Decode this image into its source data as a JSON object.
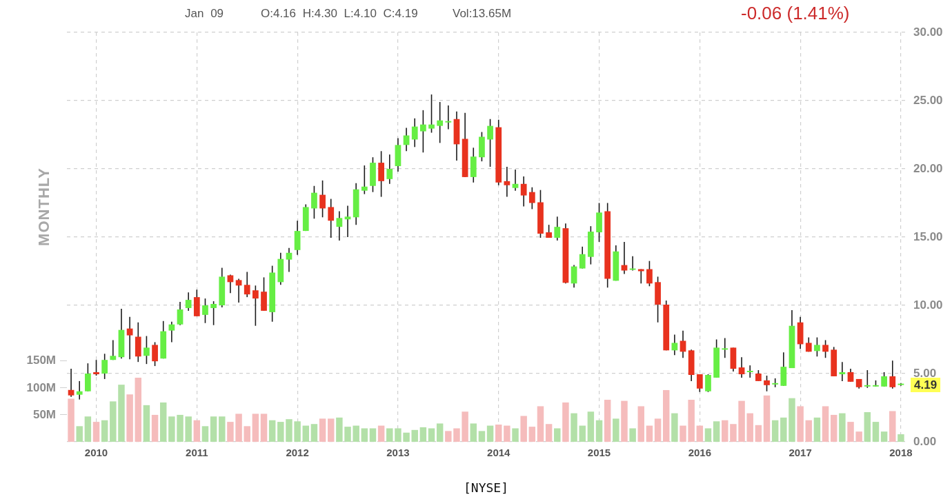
{
  "chart_data": {
    "type": "candlestick",
    "xlabel": "[NYSE]",
    "annotations": [
      "Jan 09",
      "O:4.16 H:4.30 L:4.10 C:4.19",
      "Vol:13.65M",
      "-0.06 (1.41%)",
      "4.19",
      "MONTHLY"
    ],
    "categories": [
      null,
      null,
      null,
      "2010",
      null,
      null,
      null,
      null,
      null,
      null,
      null,
      null,
      null,
      null,
      null,
      "2011",
      null,
      null,
      null,
      null,
      null,
      null,
      null,
      null,
      null,
      null,
      null,
      "2012",
      null,
      null,
      null,
      null,
      null,
      null,
      null,
      null,
      null,
      null,
      null,
      "2013",
      null,
      null,
      null,
      null,
      null,
      null,
      null,
      null,
      null,
      null,
      null,
      "2014",
      null,
      null,
      null,
      null,
      null,
      null,
      null,
      null,
      null,
      null,
      null,
      "2015",
      null,
      null,
      null,
      null,
      null,
      null,
      null,
      null,
      null,
      null,
      null,
      "2016",
      null,
      null,
      null,
      null,
      null,
      null,
      null,
      null,
      null,
      null,
      null,
      "2017",
      null,
      null,
      null,
      null,
      null,
      null,
      null,
      null,
      null,
      null,
      null,
      "2018"
    ],
    "ohlc": [
      [
        3.8,
        5.35,
        3.3,
        3.4
      ],
      [
        3.45,
        4.45,
        3.1,
        3.7
      ],
      [
        3.7,
        5.75,
        3.7,
        5.0
      ],
      [
        5.1,
        6.0,
        4.85,
        4.95
      ],
      [
        5.0,
        6.45,
        4.6,
        6.0
      ],
      [
        6.0,
        7.45,
        6.0,
        6.3
      ],
      [
        6.2,
        9.75,
        6.1,
        8.2
      ],
      [
        8.3,
        9.15,
        6.05,
        7.8
      ],
      [
        7.7,
        8.75,
        5.85,
        6.25
      ],
      [
        6.3,
        7.75,
        5.7,
        6.9
      ],
      [
        7.1,
        7.3,
        5.55,
        5.9
      ],
      [
        6.1,
        8.85,
        6.1,
        8.1
      ],
      [
        8.15,
        8.8,
        7.3,
        8.6
      ],
      [
        8.6,
        10.25,
        8.55,
        9.7
      ],
      [
        9.8,
        10.95,
        9.6,
        10.4
      ],
      [
        10.6,
        11.15,
        9.2,
        9.2
      ],
      [
        9.3,
        10.5,
        8.7,
        10.0
      ],
      [
        9.8,
        10.3,
        8.55,
        10.1
      ],
      [
        10.0,
        12.75,
        9.85,
        12.1
      ],
      [
        12.2,
        12.25,
        10.9,
        11.7
      ],
      [
        11.85,
        11.95,
        10.2,
        11.45
      ],
      [
        11.5,
        12.45,
        10.6,
        10.8
      ],
      [
        11.1,
        11.45,
        8.5,
        10.5
      ],
      [
        11.0,
        12.05,
        9.6,
        9.6
      ],
      [
        9.5,
        12.9,
        8.8,
        12.4
      ],
      [
        11.7,
        13.85,
        11.5,
        13.4
      ],
      [
        13.35,
        14.2,
        12.45,
        13.85
      ],
      [
        14.05,
        16.2,
        13.7,
        15.45
      ],
      [
        15.45,
        17.4,
        15.45,
        17.2
      ],
      [
        17.1,
        18.75,
        16.35,
        18.25
      ],
      [
        18.1,
        19.15,
        16.45,
        17.1
      ],
      [
        17.2,
        17.8,
        14.95,
        16.2
      ],
      [
        15.75,
        16.9,
        14.75,
        16.4
      ],
      [
        16.3,
        17.3,
        15.0,
        16.5
      ],
      [
        16.45,
        18.95,
        15.9,
        18.5
      ],
      [
        18.4,
        20.25,
        18.15,
        18.7
      ],
      [
        18.75,
        20.85,
        18.3,
        20.45
      ],
      [
        20.45,
        21.3,
        17.95,
        19.1
      ],
      [
        19.25,
        21.05,
        18.9,
        20.0
      ],
      [
        20.2,
        22.25,
        19.8,
        21.75
      ],
      [
        21.75,
        23.0,
        21.3,
        22.45
      ],
      [
        22.15,
        23.7,
        21.6,
        23.1
      ],
      [
        22.75,
        24.3,
        21.2,
        23.25
      ],
      [
        22.95,
        25.45,
        22.65,
        23.25
      ],
      [
        23.15,
        24.9,
        21.9,
        23.55
      ],
      [
        23.4,
        24.65,
        22.9,
        23.4
      ],
      [
        23.65,
        24.2,
        20.6,
        21.8
      ],
      [
        22.2,
        24.1,
        19.4,
        19.4
      ],
      [
        19.4,
        21.55,
        19.0,
        20.9
      ],
      [
        20.85,
        22.7,
        20.55,
        22.35
      ],
      [
        22.15,
        23.65,
        20.15,
        23.15
      ],
      [
        23.05,
        23.6,
        18.8,
        19.0
      ],
      [
        19.1,
        20.15,
        17.95,
        18.8
      ],
      [
        18.6,
        19.95,
        18.4,
        18.9
      ],
      [
        18.9,
        19.45,
        17.25,
        18.05
      ],
      [
        18.3,
        18.65,
        17.05,
        17.5
      ],
      [
        17.55,
        18.45,
        14.95,
        15.25
      ],
      [
        15.35,
        15.9,
        14.95,
        14.95
      ],
      [
        14.95,
        16.5,
        14.75,
        15.75
      ],
      [
        15.65,
        16.0,
        11.6,
        11.65
      ],
      [
        11.6,
        12.95,
        11.3,
        12.85
      ],
      [
        12.7,
        14.3,
        12.7,
        13.75
      ],
      [
        13.55,
        15.8,
        13.0,
        15.4
      ],
      [
        15.35,
        17.5,
        14.65,
        16.8
      ],
      [
        16.9,
        17.5,
        11.3,
        11.95
      ],
      [
        11.8,
        14.4,
        11.8,
        13.95
      ],
      [
        12.95,
        14.65,
        12.3,
        12.55
      ],
      [
        12.6,
        13.6,
        12.55,
        12.6
      ],
      [
        12.65,
        12.65,
        11.6,
        12.5
      ],
      [
        12.65,
        13.25,
        11.4,
        11.6
      ],
      [
        11.7,
        12.1,
        8.75,
        10.05
      ],
      [
        10.05,
        10.35,
        6.7,
        6.7
      ],
      [
        6.7,
        7.85,
        6.35,
        7.25
      ],
      [
        7.4,
        8.15,
        6.15,
        6.6
      ],
      [
        6.7,
        6.75,
        4.45,
        4.9
      ],
      [
        4.95,
        4.95,
        3.65,
        3.9
      ],
      [
        3.7,
        4.95,
        3.65,
        4.9
      ],
      [
        4.7,
        7.5,
        4.7,
        6.9
      ],
      [
        6.75,
        7.6,
        6.15,
        6.75
      ],
      [
        6.9,
        6.9,
        5.15,
        5.35
      ],
      [
        5.45,
        6.2,
        4.7,
        4.95
      ],
      [
        5.1,
        5.6,
        4.7,
        5.1
      ],
      [
        5.0,
        5.25,
        4.45,
        4.45
      ],
      [
        4.5,
        4.85,
        3.7,
        4.15
      ],
      [
        4.2,
        4.65,
        4.0,
        4.2
      ],
      [
        4.1,
        6.55,
        4.1,
        5.5
      ],
      [
        5.4,
        9.65,
        5.4,
        8.5
      ],
      [
        8.75,
        9.15,
        6.8,
        7.15
      ],
      [
        7.25,
        7.65,
        6.6,
        6.6
      ],
      [
        6.65,
        7.65,
        6.25,
        7.1
      ],
      [
        7.1,
        7.45,
        6.15,
        6.6
      ],
      [
        6.75,
        6.95,
        4.8,
        4.8
      ],
      [
        4.95,
        5.85,
        4.45,
        5.1
      ],
      [
        5.1,
        5.35,
        4.4,
        4.4
      ],
      [
        4.6,
        4.6,
        3.9,
        4.0
      ],
      [
        4.05,
        5.25,
        3.95,
        4.05
      ],
      [
        4.05,
        4.5,
        4.05,
        4.05
      ],
      [
        4.05,
        5.1,
        4.05,
        4.8
      ],
      [
        4.8,
        5.95,
        3.9,
        4.0
      ],
      [
        4.16,
        4.3,
        4.1,
        4.19
      ]
    ],
    "colors": [
      "#e8321e",
      "#66ee44",
      "#66ee44",
      "#e8321e",
      "#66ee44",
      "#66ee44",
      "#66ee44",
      "#e8321e",
      "#e8321e",
      "#66ee44",
      "#e8321e",
      "#66ee44",
      "#66ee44",
      "#66ee44",
      "#66ee44",
      "#e8321e",
      "#66ee44",
      "#66ee44",
      "#66ee44",
      "#e8321e",
      "#e8321e",
      "#e8321e",
      "#e8321e",
      "#e8321e",
      "#66ee44",
      "#66ee44",
      "#66ee44",
      "#66ee44",
      "#66ee44",
      "#66ee44",
      "#e8321e",
      "#e8321e",
      "#66ee44",
      "#66ee44",
      "#66ee44",
      "#66ee44",
      "#66ee44",
      "#e8321e",
      "#66ee44",
      "#66ee44",
      "#66ee44",
      "#66ee44",
      "#66ee44",
      "#66ee44",
      "#66ee44",
      "#66ee44",
      "#e8321e",
      "#e8321e",
      "#66ee44",
      "#66ee44",
      "#66ee44",
      "#e8321e",
      "#e8321e",
      "#66ee44",
      "#e8321e",
      "#e8321e",
      "#e8321e",
      "#e8321e",
      "#66ee44",
      "#e8321e",
      "#66ee44",
      "#66ee44",
      "#66ee44",
      "#66ee44",
      "#e8321e",
      "#66ee44",
      "#e8321e",
      "#66ee44",
      "#e8321e",
      "#e8321e",
      "#e8321e",
      "#e8321e",
      "#66ee44",
      "#e8321e",
      "#e8321e",
      "#e8321e",
      "#66ee44",
      "#66ee44",
      "#66ee44",
      "#e8321e",
      "#e8321e",
      "#66ee44",
      "#e8321e",
      "#e8321e",
      "#66ee44",
      "#66ee44",
      "#66ee44",
      "#e8321e",
      "#e8321e",
      "#66ee44",
      "#e8321e",
      "#e8321e",
      "#66ee44",
      "#e8321e",
      "#e8321e",
      "#66ee44",
      "#66ee44",
      "#66ee44",
      "#e8321e",
      "#66ee44"
    ],
    "series": [
      {
        "type": "bar",
        "axis": "y2",
        "values": [
          80,
          29,
          47,
          37,
          40,
          75,
          106,
          88,
          119,
          68,
          50,
          73,
          47,
          50,
          47,
          40,
          29,
          47,
          47,
          37,
          52,
          29,
          52,
          52,
          40,
          37,
          42,
          38,
          30,
          33,
          43,
          43,
          45,
          28,
          30,
          25,
          25,
          30,
          25,
          25,
          17,
          22,
          27,
          25,
          34,
          20,
          25,
          56,
          34,
          20,
          30,
          32,
          30,
          25,
          48,
          28,
          66,
          33,
          25,
          73,
          53,
          30,
          56,
          40,
          78,
          43,
          76,
          25,
          66,
          30,
          43,
          96,
          53,
          30,
          78,
          30,
          25,
          38,
          40,
          33,
          76,
          53,
          31,
          86,
          40,
          45,
          81,
          66,
          40,
          45,
          66,
          50,
          53,
          37,
          19,
          55,
          37,
          19,
          57,
          14
        ],
        "colors": [
          "#f5bcbc",
          "#b3e0a8",
          "#b3e0a8",
          "#f5bcbc",
          "#b3e0a8",
          "#b3e0a8",
          "#b3e0a8",
          "#f5bcbc",
          "#f5bcbc",
          "#b3e0a8",
          "#f5bcbc",
          "#b3e0a8",
          "#b3e0a8",
          "#b3e0a8",
          "#b3e0a8",
          "#f5bcbc",
          "#b3e0a8",
          "#b3e0a8",
          "#b3e0a8",
          "#f5bcbc",
          "#f5bcbc",
          "#f5bcbc",
          "#f5bcbc",
          "#f5bcbc",
          "#b3e0a8",
          "#b3e0a8",
          "#b3e0a8",
          "#b3e0a8",
          "#b3e0a8",
          "#b3e0a8",
          "#f5bcbc",
          "#f5bcbc",
          "#b3e0a8",
          "#b3e0a8",
          "#b3e0a8",
          "#b3e0a8",
          "#b3e0a8",
          "#f5bcbc",
          "#b3e0a8",
          "#b3e0a8",
          "#b3e0a8",
          "#b3e0a8",
          "#b3e0a8",
          "#b3e0a8",
          "#b3e0a8",
          "#f5bcbc",
          "#f5bcbc",
          "#f5bcbc",
          "#b3e0a8",
          "#b3e0a8",
          "#b3e0a8",
          "#f5bcbc",
          "#f5bcbc",
          "#b3e0a8",
          "#f5bcbc",
          "#f5bcbc",
          "#f5bcbc",
          "#f5bcbc",
          "#b3e0a8",
          "#f5bcbc",
          "#b3e0a8",
          "#b3e0a8",
          "#b3e0a8",
          "#b3e0a8",
          "#f5bcbc",
          "#b3e0a8",
          "#f5bcbc",
          "#b3e0a8",
          "#f5bcbc",
          "#f5bcbc",
          "#f5bcbc",
          "#f5bcbc",
          "#b3e0a8",
          "#f5bcbc",
          "#f5bcbc",
          "#f5bcbc",
          "#b3e0a8",
          "#b3e0a8",
          "#f5bcbc",
          "#f5bcbc",
          "#f5bcbc",
          "#f5bcbc",
          "#f5bcbc",
          "#f5bcbc",
          "#b3e0a8",
          "#b3e0a8",
          "#b3e0a8",
          "#f5bcbc",
          "#f5bcbc",
          "#b3e0a8",
          "#f5bcbc",
          "#f5bcbc",
          "#b3e0a8",
          "#f5bcbc",
          "#f5bcbc",
          "#b3e0a8",
          "#b3e0a8",
          "#b3e0a8",
          "#f5bcbc",
          "#b3e0a8"
        ]
      }
    ],
    "ylim": [
      0,
      30
    ],
    "yticks": [
      {
        "value": 0,
        "label": "0.00"
      },
      {
        "value": 5,
        "label": "5.00"
      },
      {
        "value": 10,
        "label": "10.00"
      },
      {
        "value": 15,
        "label": "15.00"
      },
      {
        "value": 20,
        "label": "20.00"
      },
      {
        "value": 25,
        "label": "25.00"
      },
      {
        "value": 30,
        "label": "30.00"
      }
    ],
    "y2lim": [
      0,
      760
    ],
    "y2ticks": [
      {
        "value": 50,
        "label": "50M"
      },
      {
        "value": 100,
        "label": "100M"
      },
      {
        "value": 150,
        "label": "150M"
      }
    ],
    "grid": true
  }
}
